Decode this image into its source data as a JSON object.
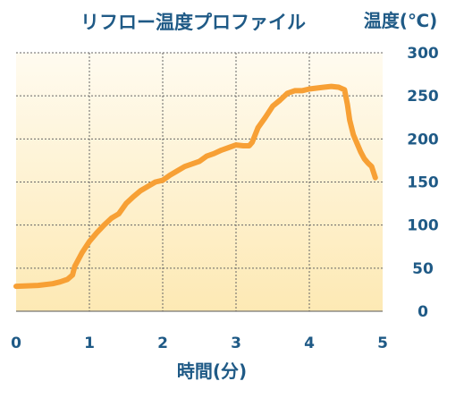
{
  "chart_data": {
    "type": "line",
    "title": "リフロー温度プロファイル",
    "xlabel": "時間(分)",
    "ylabel": "温度(℃)",
    "xlim": [
      0,
      5
    ],
    "ylim": [
      0,
      300
    ],
    "x_ticks": [
      "0",
      "1",
      "2",
      "3",
      "4",
      "5"
    ],
    "y_ticks": [
      "0",
      "50",
      "100",
      "150",
      "200",
      "250",
      "300"
    ],
    "grid": true,
    "line_color": "#f7a035",
    "background_gradient": [
      "#fffbf0",
      "#fde9b4"
    ],
    "series": [
      {
        "x": [
          0,
          0.3,
          0.5,
          0.6,
          0.7,
          0.77,
          0.8,
          0.9,
          1.0,
          1.1,
          1.2,
          1.3,
          1.4,
          1.5,
          1.6,
          1.7,
          1.8,
          1.9,
          2.0,
          2.1,
          2.2,
          2.3,
          2.4,
          2.5,
          2.6,
          2.7,
          2.8,
          2.9,
          3.0,
          3.1,
          3.18,
          3.22,
          3.3,
          3.4,
          3.5,
          3.6,
          3.7,
          3.8,
          3.9,
          4.0,
          4.1,
          4.2,
          4.3,
          4.4,
          4.48,
          4.52,
          4.55,
          4.6,
          4.65,
          4.7,
          4.75,
          4.8,
          4.85,
          4.9
        ],
        "y": [
          29,
          30,
          32,
          34,
          37,
          42,
          52,
          68,
          81,
          91,
          100,
          108,
          113,
          125,
          133,
          140,
          145,
          150,
          152,
          158,
          163,
          168,
          171,
          174,
          180,
          183,
          187,
          190,
          193,
          192,
          192,
          196,
          213,
          225,
          238,
          245,
          253,
          256,
          256,
          258,
          259,
          260,
          261,
          260,
          257,
          240,
          222,
          205,
          195,
          185,
          177,
          172,
          168,
          155
        ]
      }
    ]
  }
}
